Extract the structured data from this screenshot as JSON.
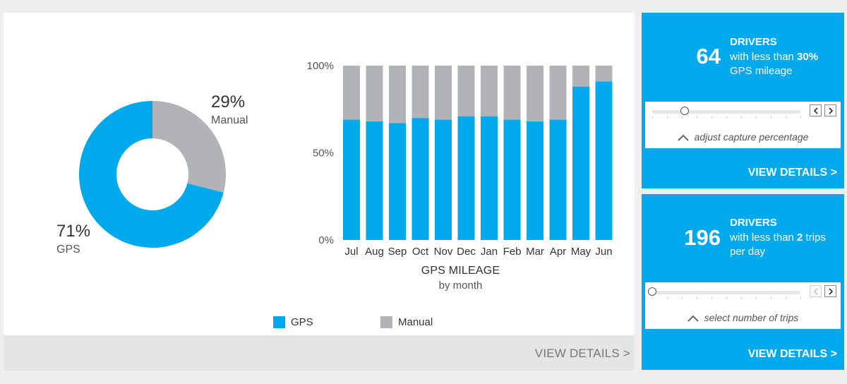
{
  "donut": {
    "gps_pct": "71%",
    "gps_label": "GPS",
    "manual_pct": "29%",
    "manual_label": "Manual",
    "colors": {
      "gps": "#00a9ec",
      "manual": "#b1b3b6"
    }
  },
  "chart_data": [
    {
      "type": "pie",
      "categories": [
        "GPS",
        "Manual"
      ],
      "values": [
        71,
        29
      ],
      "colors": [
        "#00a9ec",
        "#b1b3b6"
      ]
    },
    {
      "type": "bar",
      "stacked": true,
      "title": "GPS MILEAGE",
      "subtitle": "by month",
      "categories": [
        "Jul",
        "Aug",
        "Sep",
        "Oct",
        "Nov",
        "Dec",
        "Jan",
        "Feb",
        "Mar",
        "Apr",
        "May",
        "Jun"
      ],
      "series": [
        {
          "name": "GPS",
          "color": "#00a9ec",
          "values": [
            69,
            68,
            67,
            70,
            69,
            71,
            71,
            69,
            68,
            69,
            88,
            91
          ]
        },
        {
          "name": "Manual",
          "color": "#b1b3b6",
          "values": [
            31,
            32,
            33,
            30,
            31,
            29,
            29,
            31,
            32,
            31,
            12,
            9
          ]
        }
      ],
      "yticks": [
        "100%",
        "50%",
        "0%"
      ],
      "ylim": [
        0,
        100
      ],
      "grid": false,
      "legend": "bottom"
    }
  ],
  "main_footer": {
    "view_details": "VIEW DETAILS >"
  },
  "cards": [
    {
      "count": "64",
      "heading": "DRIVERS",
      "line1_prefix": "with less than ",
      "line1_bold": "30%",
      "line2": "GPS mileage",
      "slider_value_fraction": 0.22,
      "caption": "adjust capture percentage",
      "link": "VIEW DETAILS >"
    },
    {
      "count": "196",
      "heading": "DRIVERS",
      "line1_prefix": "with less than ",
      "line1_bold": "2",
      "line1_suffix": " trips",
      "line2": "per day",
      "slider_value_fraction": 0.0,
      "caption": "select number of trips",
      "link": "VIEW DETAILS >"
    }
  ]
}
